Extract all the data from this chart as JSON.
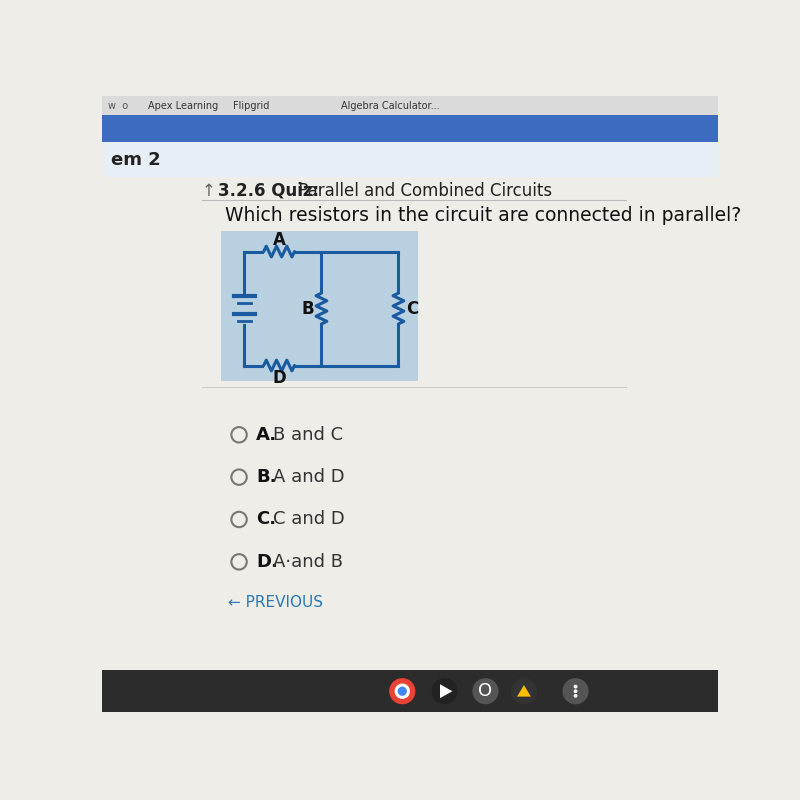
{
  "page_bg": "#eeede8",
  "browser_bar_color": "#3a3a3a",
  "tab_bar_color": "#4472c4",
  "header_bar_color": "#dce8f0",
  "blue": "#1a5aa0",
  "circuit_bg": "#b8d0e0",
  "title_text": "3.2.6 Quiz:  Parallel and Combined Circuits",
  "question_text": "Which resistors in the circuit are connected in parallel?",
  "options": [
    {
      "letter": "A.",
      "text": "B and C"
    },
    {
      "letter": "B.",
      "text": "A and D"
    },
    {
      "letter": "C.",
      "text": "C and D"
    },
    {
      "letter": "D.",
      "text": "A·and B"
    }
  ],
  "previous_text": "← PREVIOUS",
  "em2_text": "em 2",
  "taskbar_color": "#2c2c2c"
}
